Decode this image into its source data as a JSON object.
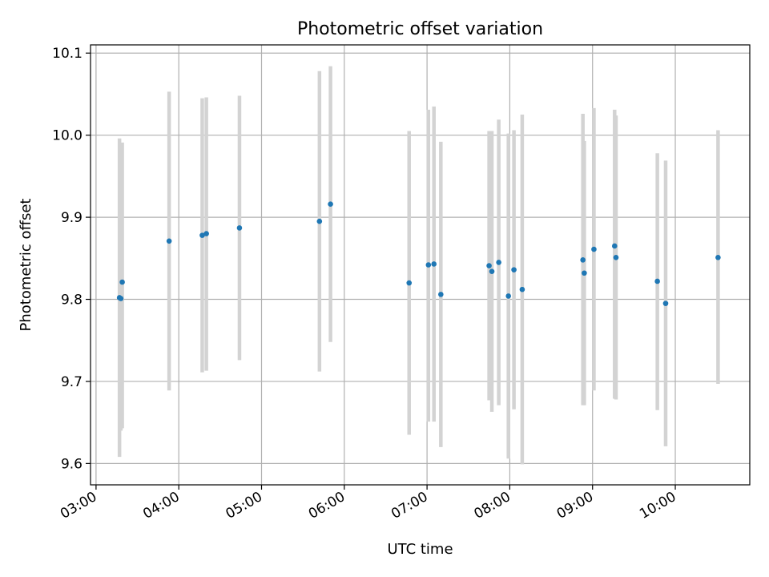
{
  "chart_data": {
    "type": "scatter",
    "title": "Photometric offset variation",
    "xlabel": "UTC time",
    "ylabel": "Photometric offset",
    "xlim": [
      "02:56",
      "10:54"
    ],
    "ylim": [
      9.574,
      10.11
    ],
    "x_ticks": [
      "03:00",
      "04:00",
      "05:00",
      "06:00",
      "07:00",
      "08:00",
      "09:00",
      "10:00"
    ],
    "y_ticks": [
      "9.6",
      "9.7",
      "9.8",
      "9.9",
      "10.0",
      "10.1"
    ],
    "grid": true,
    "point_color": "#1f77b4",
    "errorbar_color": "#d3d3d3",
    "points": [
      {
        "t": "03:17",
        "y": 9.802,
        "lo": 9.608,
        "hi": 9.996
      },
      {
        "t": "03:19",
        "y": 9.821,
        "lo": 9.643,
        "hi": 9.991
      },
      {
        "t": "03:18",
        "y": 9.801,
        "lo": 9.64,
        "hi": 9.96
      },
      {
        "t": "03:53",
        "y": 9.871,
        "lo": 9.689,
        "hi": 10.053
      },
      {
        "t": "04:17",
        "y": 9.878,
        "lo": 9.711,
        "hi": 10.045
      },
      {
        "t": "04:20",
        "y": 9.88,
        "lo": 9.713,
        "hi": 10.046
      },
      {
        "t": "04:44",
        "y": 9.887,
        "lo": 9.726,
        "hi": 10.048
      },
      {
        "t": "05:42",
        "y": 9.895,
        "lo": 9.712,
        "hi": 10.078
      },
      {
        "t": "05:50",
        "y": 9.916,
        "lo": 9.748,
        "hi": 10.084
      },
      {
        "t": "06:47",
        "y": 9.82,
        "lo": 9.635,
        "hi": 10.005
      },
      {
        "t": "07:01",
        "y": 9.842,
        "lo": 9.651,
        "hi": 10.031
      },
      {
        "t": "07:05",
        "y": 9.843,
        "lo": 9.651,
        "hi": 10.035
      },
      {
        "t": "07:10",
        "y": 9.806,
        "lo": 9.62,
        "hi": 9.992
      },
      {
        "t": "07:45",
        "y": 9.841,
        "lo": 9.677,
        "hi": 10.005
      },
      {
        "t": "07:47",
        "y": 9.834,
        "lo": 9.663,
        "hi": 10.005
      },
      {
        "t": "07:52",
        "y": 9.845,
        "lo": 9.671,
        "hi": 10.019
      },
      {
        "t": "07:59",
        "y": 9.804,
        "lo": 9.606,
        "hi": 10.002
      },
      {
        "t": "08:03",
        "y": 9.836,
        "lo": 9.666,
        "hi": 10.006
      },
      {
        "t": "08:09",
        "y": 9.812,
        "lo": 9.599,
        "hi": 10.025
      },
      {
        "t": "08:53",
        "y": 9.848,
        "lo": 9.671,
        "hi": 10.026
      },
      {
        "t": "08:54",
        "y": 9.832,
        "lo": 9.671,
        "hi": 9.993
      },
      {
        "t": "09:01",
        "y": 9.861,
        "lo": 9.689,
        "hi": 10.033
      },
      {
        "t": "09:16",
        "y": 9.865,
        "lo": 9.679,
        "hi": 10.031
      },
      {
        "t": "09:17",
        "y": 9.851,
        "lo": 9.678,
        "hi": 10.024
      },
      {
        "t": "09:47",
        "y": 9.822,
        "lo": 9.665,
        "hi": 9.978
      },
      {
        "t": "09:53",
        "y": 9.795,
        "lo": 9.621,
        "hi": 9.969
      },
      {
        "t": "10:31",
        "y": 9.851,
        "lo": 9.697,
        "hi": 10.006
      }
    ]
  }
}
